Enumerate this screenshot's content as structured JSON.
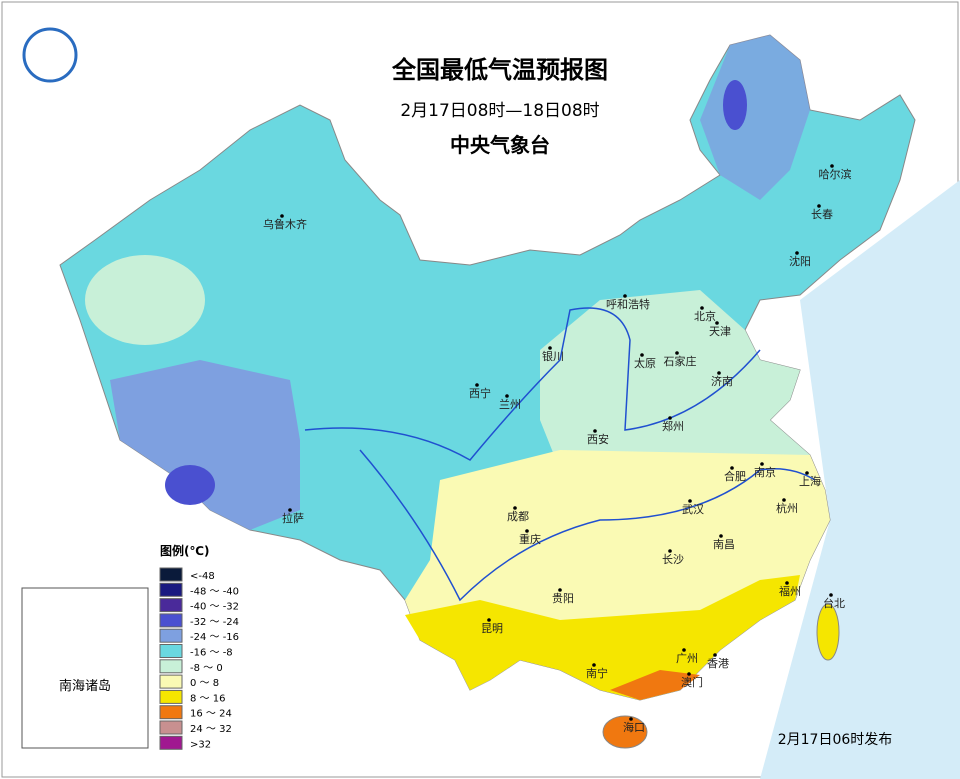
{
  "header": {
    "title": "全国最低气温预报图",
    "subtitle": "2月17日08时—18日08时",
    "issuer": "中央气象台"
  },
  "legend": {
    "title": "图例(℃)",
    "items": [
      {
        "label": "<-48",
        "color": "#0a1a3a"
      },
      {
        "label": "-48 ～ -40",
        "color": "#1a1a80"
      },
      {
        "label": "-40 ～ -32",
        "color": "#4a2a9a"
      },
      {
        "label": "-32 ～ -24",
        "color": "#4a50d0"
      },
      {
        "label": "-24 ～ -16",
        "color": "#7ea0e0"
      },
      {
        "label": "-16 ～ -8",
        "color": "#6ad8e0"
      },
      {
        "label": "-8 ～ 0",
        "color": "#c8f0d8"
      },
      {
        "label": "0 ～ 8",
        "color": "#fafab4"
      },
      {
        "label": "8 ～ 16",
        "color": "#f5e600"
      },
      {
        "label": "16 ～ 24",
        "color": "#f07810"
      },
      {
        "label": "24 ～ 32",
        "color": "#c89090"
      },
      {
        "label": ">32",
        "color": "#a01890"
      }
    ]
  },
  "cities": [
    "乌鲁木齐",
    "哈尔滨",
    "长春",
    "沈阳",
    "呼和浩特",
    "北京",
    "天津",
    "银川",
    "石家庄",
    "太原",
    "济南",
    "西宁",
    "兰州",
    "郑州",
    "西安",
    "合肥",
    "南京",
    "上海",
    "成都",
    "武汉",
    "杭州",
    "拉萨",
    "重庆",
    "南昌",
    "长沙",
    "福州",
    "贵阳",
    "台北",
    "昆明",
    "南宁",
    "广州",
    "香港",
    "澳门",
    "海口"
  ],
  "inset": {
    "label": "南海诸岛"
  },
  "footer": {
    "note": "2月17日06时发布"
  }
}
